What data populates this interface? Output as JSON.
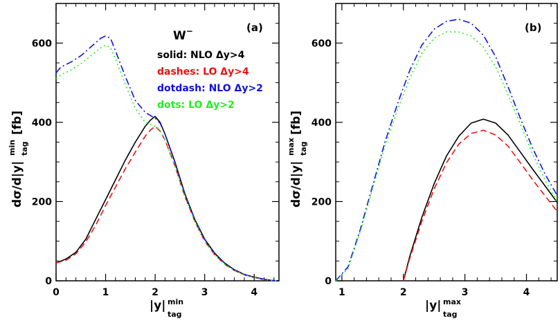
{
  "chart_data": [
    {
      "type": "line",
      "panel_label": "(a)",
      "title": "W",
      "title_sup": "−",
      "xlabel": "|y|",
      "xlabel_sup": "min",
      "xlabel_sub": "tag",
      "ylabel": "dσ/d|y|",
      "ylabel_sup": "min",
      "ylabel_sub": "tag",
      "ylabel_unit": "[fb]",
      "xlim": [
        0,
        4.5
      ],
      "ylim": [
        0,
        700
      ],
      "x_ticks": [
        "0",
        "1",
        "2",
        "3",
        "4"
      ],
      "y_ticks": [
        "0",
        "200",
        "400",
        "600"
      ],
      "legend": [
        {
          "text": "solid: NLO Δy>4",
          "color": "#000000"
        },
        {
          "text": "dashes: LO Δy>4",
          "color": "#ee1111"
        },
        {
          "text": "dotdash: NLO Δy>2",
          "color": "#1111dd"
        },
        {
          "text": "dots: LO Δy>2",
          "color": "#22ee22"
        }
      ],
      "series": [
        {
          "style": "solid",
          "color": "#000000",
          "x": [
            0,
            0.2,
            0.4,
            0.6,
            0.8,
            1.0,
            1.2,
            1.4,
            1.6,
            1.8,
            1.9,
            2.0,
            2.1,
            2.2,
            2.4,
            2.6,
            2.8,
            3.0,
            3.2,
            3.4,
            3.6,
            3.8,
            4.0,
            4.2,
            4.35,
            4.5
          ],
          "y": [
            45,
            55,
            72,
            105,
            155,
            205,
            255,
            305,
            350,
            390,
            405,
            415,
            400,
            370,
            300,
            220,
            155,
            105,
            70,
            45,
            28,
            16,
            9,
            4,
            1,
            0
          ]
        },
        {
          "style": "dashed",
          "color": "#ee1111",
          "x": [
            0,
            0.2,
            0.4,
            0.6,
            0.8,
            1.0,
            1.2,
            1.4,
            1.6,
            1.8,
            1.9,
            2.0,
            2.1,
            2.2,
            2.4,
            2.6,
            2.8,
            3.0,
            3.2,
            3.4,
            3.6,
            3.8,
            4.0,
            4.2,
            4.35,
            4.5
          ],
          "y": [
            45,
            52,
            68,
            98,
            140,
            190,
            237,
            283,
            325,
            365,
            380,
            390,
            378,
            355,
            290,
            213,
            150,
            100,
            66,
            42,
            26,
            15,
            8,
            3,
            1,
            0
          ]
        },
        {
          "style": "dotdash",
          "color": "#1111dd",
          "x": [
            0,
            0.1,
            0.3,
            0.5,
            0.7,
            0.9,
            1.0,
            1.1,
            1.2,
            1.4,
            1.6,
            1.8,
            2.0,
            2.1,
            2.2,
            2.4,
            2.6,
            2.8,
            3.0,
            3.2,
            3.4,
            3.6,
            3.8,
            4.0,
            4.2,
            4.35,
            4.5
          ],
          "y": [
            525,
            540,
            552,
            568,
            590,
            612,
            618,
            612,
            580,
            515,
            455,
            425,
            410,
            398,
            370,
            300,
            220,
            155,
            105,
            70,
            45,
            28,
            16,
            9,
            4,
            1,
            0
          ]
        },
        {
          "style": "dotted",
          "color": "#22ee22",
          "x": [
            0,
            0.1,
            0.3,
            0.5,
            0.7,
            0.9,
            1.0,
            1.1,
            1.2,
            1.4,
            1.6,
            1.8,
            2.0,
            2.1,
            2.2,
            2.4,
            2.6,
            2.8,
            3.0,
            3.2,
            3.4,
            3.6,
            3.8,
            4.0,
            4.2,
            4.35,
            4.5
          ],
          "y": [
            510,
            520,
            532,
            548,
            568,
            588,
            595,
            588,
            560,
            495,
            435,
            400,
            390,
            380,
            355,
            290,
            213,
            150,
            100,
            66,
            42,
            26,
            15,
            8,
            3,
            1,
            0
          ]
        }
      ]
    },
    {
      "type": "line",
      "panel_label": "(b)",
      "xlabel": "|y|",
      "xlabel_sup": "max",
      "xlabel_sub": "tag",
      "ylabel": "dσ/d|y|",
      "ylabel_sup": "max",
      "ylabel_sub": "tag",
      "ylabel_unit": "[fb]",
      "xlim": [
        0.9,
        4.5
      ],
      "ylim": [
        0,
        700
      ],
      "x_ticks": [
        "1",
        "2",
        "3",
        "4"
      ],
      "y_ticks": [
        "0",
        "200",
        "400",
        "600"
      ],
      "series": [
        {
          "style": "solid",
          "color": "#000000",
          "x": [
            2.0,
            2.1,
            2.3,
            2.5,
            2.7,
            2.9,
            3.1,
            3.3,
            3.5,
            3.7,
            3.9,
            4.1,
            4.3,
            4.5
          ],
          "y": [
            0,
            60,
            160,
            245,
            315,
            365,
            398,
            408,
            398,
            368,
            325,
            282,
            240,
            198
          ]
        },
        {
          "style": "dashed",
          "color": "#ee1111",
          "x": [
            2.0,
            2.1,
            2.3,
            2.5,
            2.7,
            2.9,
            3.1,
            3.3,
            3.5,
            3.7,
            3.9,
            4.1,
            4.3,
            4.5
          ],
          "y": [
            0,
            55,
            150,
            232,
            298,
            345,
            372,
            380,
            368,
            340,
            298,
            255,
            215,
            175
          ]
        },
        {
          "style": "dotdash",
          "color": "#1111dd",
          "x": [
            0.9,
            1.1,
            1.3,
            1.5,
            1.7,
            1.9,
            2.1,
            2.3,
            2.5,
            2.7,
            2.9,
            3.1,
            3.3,
            3.5,
            3.7,
            3.9,
            4.1,
            4.3,
            4.5
          ],
          "y": [
            0,
            35,
            130,
            240,
            350,
            445,
            530,
            595,
            635,
            655,
            660,
            650,
            620,
            565,
            490,
            410,
            335,
            270,
            215
          ]
        },
        {
          "style": "dotted",
          "color": "#22ee22",
          "x": [
            0.9,
            1.1,
            1.3,
            1.5,
            1.7,
            1.9,
            2.1,
            2.3,
            2.5,
            2.7,
            2.9,
            3.1,
            3.3,
            3.5,
            3.7,
            3.9,
            4.1,
            4.3,
            4.5
          ],
          "y": [
            0,
            30,
            125,
            232,
            340,
            430,
            510,
            575,
            612,
            628,
            628,
            618,
            590,
            540,
            470,
            395,
            320,
            255,
            198
          ]
        }
      ]
    }
  ]
}
